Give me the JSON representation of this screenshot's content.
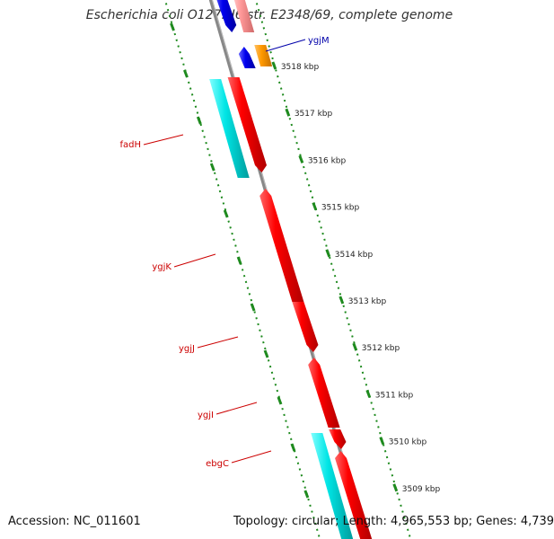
{
  "title": "Escherichia coli O127:H6 str. E2348/69, complete genome",
  "footer": {
    "accession": "Accession: NC_011601",
    "summary": "Topology: circular; Length: 4,965,553 bp; Genes: 4,739"
  },
  "colors": {
    "backbone": "#888888",
    "dotted_guide": "#1e8a1e",
    "forward_gene": "#ff0000",
    "forward_label": "#cc0000",
    "reverse_gene_blue": "#0000ee",
    "reverse_label": "#0000aa",
    "cds_cyan": "#00e5e5",
    "orange_gene": "#ff9900",
    "pink_gene": "#ff9999"
  },
  "ruler": {
    "ticks": [
      {
        "label": "3518 kbp",
        "kbp": 3518
      },
      {
        "label": "3517 kbp",
        "kbp": 3517
      },
      {
        "label": "3516 kbp",
        "kbp": 3516
      },
      {
        "label": "3515 kbp",
        "kbp": 3515
      },
      {
        "label": "3514 kbp",
        "kbp": 3514
      },
      {
        "label": "3513 kbp",
        "kbp": 3513
      },
      {
        "label": "3512 kbp",
        "kbp": 3512
      },
      {
        "label": "3511 kbp",
        "kbp": 3511
      },
      {
        "label": "3510 kbp",
        "kbp": 3510
      },
      {
        "label": "3509 kbp",
        "kbp": 3509
      }
    ]
  },
  "genes": [
    {
      "label": "ygjM",
      "strand": "reverse",
      "color": "blue"
    },
    {
      "label": "fadH",
      "strand": "forward",
      "color": "red"
    },
    {
      "label": "ygjK",
      "strand": "forward",
      "color": "red"
    },
    {
      "label": "ygjJ",
      "strand": "forward",
      "color": "red"
    },
    {
      "label": "ygjI",
      "strand": "forward",
      "color": "red"
    },
    {
      "label": "ebgC",
      "strand": "forward",
      "color": "red"
    }
  ]
}
